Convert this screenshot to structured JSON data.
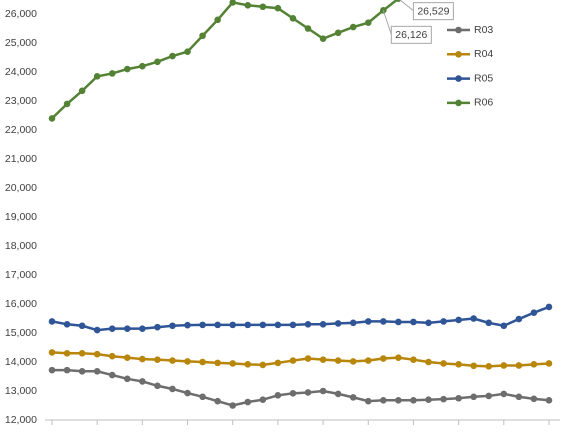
{
  "chart_data": {
    "type": "line",
    "categories": [
      null,
      null,
      null,
      null,
      null,
      null,
      null,
      null,
      null,
      null,
      null,
      null,
      null,
      null,
      null,
      null,
      null,
      null,
      null,
      null,
      null,
      null,
      null,
      null,
      null,
      null,
      null,
      null,
      null,
      null,
      null,
      null,
      null,
      null
    ],
    "series": [
      {
        "name": "R03",
        "color": "#6d6d6d",
        "values": [
          13720,
          13720,
          13680,
          13680,
          13550,
          13420,
          13330,
          13180,
          13070,
          12930,
          12800,
          12650,
          12500,
          12620,
          12700,
          12850,
          12920,
          12950,
          13000,
          12900,
          12780,
          12650,
          12680,
          12680,
          12680,
          12700,
          12720,
          12750,
          12800,
          12830,
          12900,
          12800,
          12730,
          12680
        ]
      },
      {
        "name": "R04",
        "color": "#b8860b",
        "values": [
          14330,
          14300,
          14300,
          14270,
          14200,
          14150,
          14100,
          14080,
          14050,
          14020,
          14000,
          13970,
          13950,
          13920,
          13900,
          13970,
          14050,
          14120,
          14080,
          14050,
          14020,
          14050,
          14120,
          14150,
          14080,
          14000,
          13950,
          13920,
          13870,
          13850,
          13880,
          13880,
          13920,
          13950
        ]
      },
      {
        "name": "R05",
        "color": "#2f5597",
        "values": [
          15400,
          15300,
          15250,
          15100,
          15150,
          15150,
          15150,
          15200,
          15250,
          15270,
          15280,
          15280,
          15280,
          15280,
          15280,
          15280,
          15280,
          15300,
          15300,
          15330,
          15350,
          15400,
          15400,
          15380,
          15380,
          15350,
          15400,
          15450,
          15500,
          15350,
          15250,
          15480,
          15700,
          15900
        ]
      },
      {
        "name": "R06",
        "color": "#548235",
        "values": [
          22400,
          22900,
          23350,
          23850,
          23950,
          24100,
          24200,
          24350,
          24550,
          24700,
          25250,
          25800,
          26400,
          26300,
          26250,
          26200,
          25850,
          25500,
          25150,
          25350,
          25550,
          25700,
          26126,
          26529,
          null,
          null,
          null,
          null,
          null,
          null,
          null,
          null,
          null,
          null
        ],
        "value_labels": [
          null,
          null,
          null,
          null,
          null,
          null,
          null,
          null,
          null,
          null,
          null,
          null,
          null,
          null,
          null,
          null,
          null,
          null,
          null,
          null,
          null,
          null,
          "26,126",
          "26,529",
          null,
          null,
          null,
          null,
          null,
          null,
          null,
          null,
          null,
          null
        ]
      }
    ],
    "ylim": [
      12000,
      26500
    ],
    "yticks": [
      {
        "value": 12000,
        "label": "12,000"
      },
      {
        "value": 13000,
        "label": "13,000"
      },
      {
        "value": 14000,
        "label": "14,000"
      },
      {
        "value": 15000,
        "label": "15,000"
      },
      {
        "value": 16000,
        "label": "16,000"
      },
      {
        "value": 17000,
        "label": "17,000"
      },
      {
        "value": 18000,
        "label": "18,000"
      },
      {
        "value": 19000,
        "label": "19,000"
      },
      {
        "value": 20000,
        "label": "20,000"
      },
      {
        "value": 21000,
        "label": "21,000"
      },
      {
        "value": 22000,
        "label": "22,000"
      },
      {
        "value": 23000,
        "label": "23,000"
      },
      {
        "value": 24000,
        "label": "24,000"
      },
      {
        "value": 25000,
        "label": "25,000"
      },
      {
        "value": 26000,
        "label": "26,000"
      }
    ],
    "legend": "upper right",
    "grid": false
  }
}
